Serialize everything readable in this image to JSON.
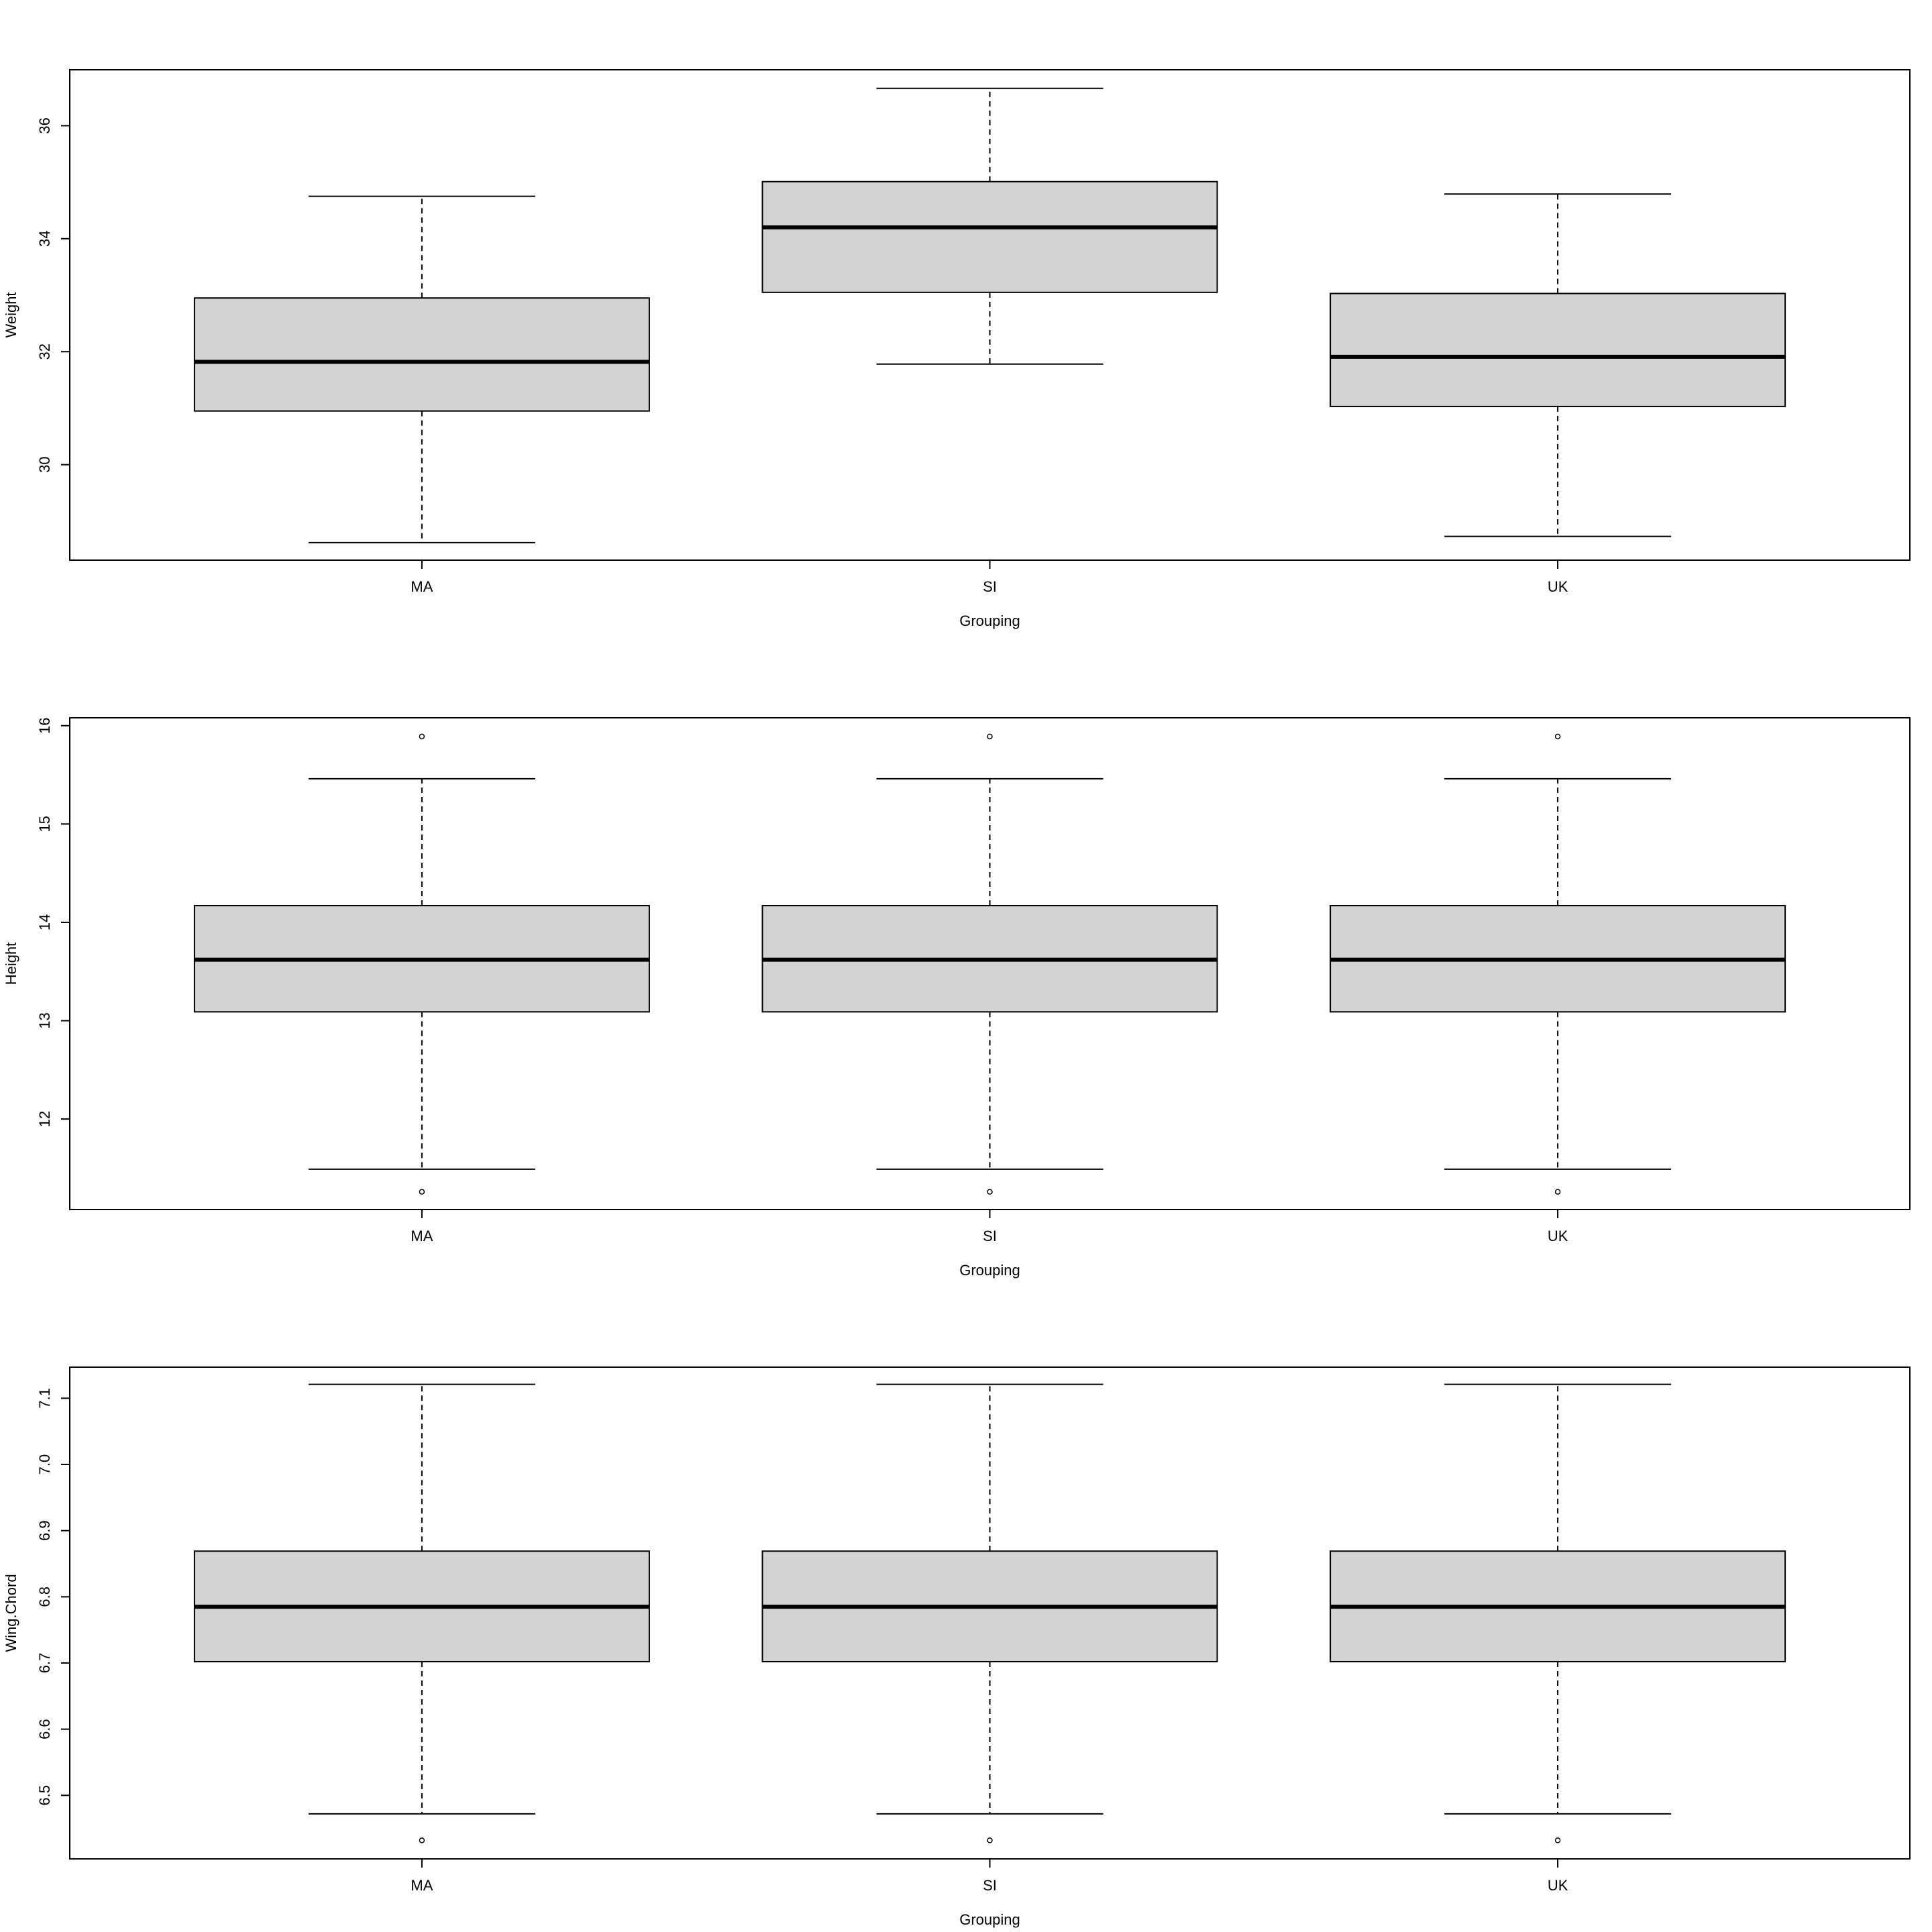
{
  "chart_data": [
    {
      "type": "box",
      "y_label": "Weight",
      "x_label": "Grouping",
      "categories": [
        "MA",
        "SI",
        "UK"
      ],
      "fill": "#d3d3d3",
      "ylim": [
        28.31,
        36.99
      ],
      "yticks": [
        30,
        32,
        34,
        36
      ],
      "boxes": [
        {
          "whislo": 28.62,
          "q1": 30.95,
          "med": 31.82,
          "q3": 32.95,
          "whishi": 34.75,
          "fliers": []
        },
        {
          "whislo": 31.78,
          "q1": 33.05,
          "med": 34.2,
          "q3": 35.01,
          "whishi": 36.66,
          "fliers": []
        },
        {
          "whislo": 28.73,
          "q1": 31.03,
          "med": 31.91,
          "q3": 33.03,
          "whishi": 34.79,
          "fliers": []
        }
      ]
    },
    {
      "type": "box",
      "y_label": "Height",
      "x_label": "Grouping",
      "categories": [
        "MA",
        "SI",
        "UK"
      ],
      "fill": "#d3d3d3",
      "ylim": [
        11.08,
        16.08
      ],
      "yticks": [
        12,
        13,
        14,
        15,
        16
      ],
      "boxes": [
        {
          "whislo": 11.49,
          "q1": 13.09,
          "med": 13.62,
          "q3": 14.17,
          "whishi": 15.46,
          "fliers": [
            11.26,
            15.89
          ]
        },
        {
          "whislo": 11.49,
          "q1": 13.09,
          "med": 13.62,
          "q3": 14.17,
          "whishi": 15.46,
          "fliers": [
            11.26,
            15.89
          ]
        },
        {
          "whislo": 11.49,
          "q1": 13.09,
          "med": 13.62,
          "q3": 14.17,
          "whishi": 15.46,
          "fliers": [
            11.26,
            15.89
          ]
        }
      ]
    },
    {
      "type": "box",
      "y_label": "Wing.Chord",
      "x_label": "Grouping",
      "categories": [
        "MA",
        "SI",
        "UK"
      ],
      "fill": "#d3d3d3",
      "ylim": [
        6.404,
        7.147
      ],
      "yticks": [
        6.5,
        6.6,
        6.7,
        6.8,
        6.9,
        {
          "value": 7,
          "label": "7.0"
        },
        7.1
      ],
      "boxes": [
        {
          "whislo": 6.472,
          "q1": 6.702,
          "med": 6.785,
          "q3": 6.869,
          "whishi": 7.121,
          "fliers": [
            6.432
          ]
        },
        {
          "whislo": 6.472,
          "q1": 6.702,
          "med": 6.785,
          "q3": 6.869,
          "whishi": 7.121,
          "fliers": [
            6.432
          ]
        },
        {
          "whislo": 6.472,
          "q1": 6.702,
          "med": 6.785,
          "q3": 6.869,
          "whishi": 7.121,
          "fliers": [
            6.432
          ]
        }
      ]
    }
  ]
}
